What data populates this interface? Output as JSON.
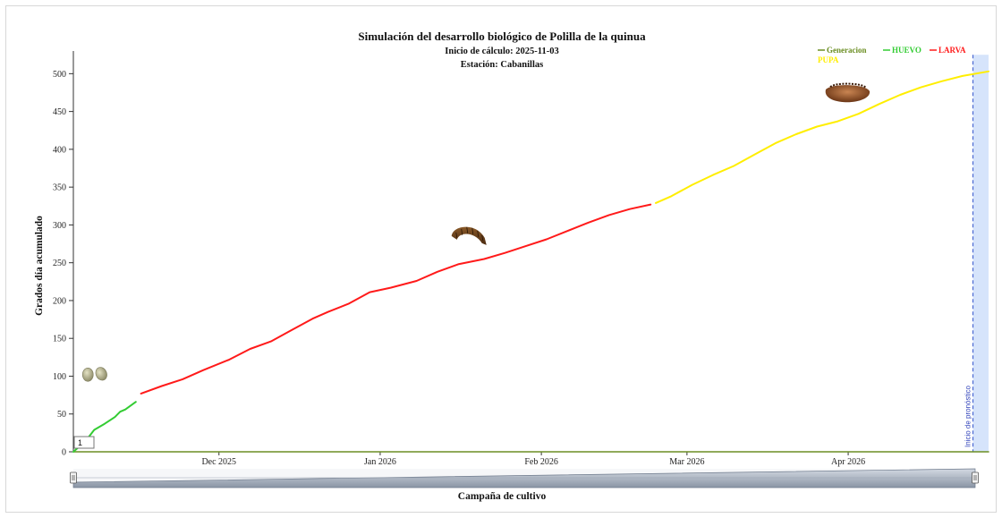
{
  "chart_data": {
    "type": "line",
    "title": "Simulación del desarrollo biológico de Polilla de la quinua",
    "subtitle_start": "Inicio de cálculo: 2025-11-03",
    "subtitle_station": "Estación: Cabanillas",
    "ylabel": "Grados día acumulado",
    "xlabel": "Campaña de cultivo",
    "ylim": [
      0,
      530
    ],
    "yticks": [
      0,
      50,
      100,
      150,
      200,
      250,
      300,
      350,
      400,
      450,
      500
    ],
    "xlim": [
      "2025-11-03",
      "2026-04-28"
    ],
    "xticks": [
      {
        "date": "2025-12-01",
        "label": "Dec 2025"
      },
      {
        "date": "2026-01-01",
        "label": "Jan 2026"
      },
      {
        "date": "2026-02-01",
        "label": "Feb 2026"
      },
      {
        "date": "2026-03-01",
        "label": "Mar 2026"
      },
      {
        "date": "2026-04-01",
        "label": "Apr 2026"
      }
    ],
    "legend": [
      {
        "name": "Generacion",
        "color": "#6b8e23"
      },
      {
        "name": "HUEVO",
        "color": "#33cc33"
      },
      {
        "name": "LARVA",
        "color": "#ff1a1a"
      },
      {
        "name": "PUPA",
        "color": "#ffee00"
      }
    ],
    "legend_position": "top-right",
    "series": [
      {
        "name": "Generacion",
        "color": "#6b8e23",
        "points": [
          [
            "2025-11-03",
            0
          ],
          [
            "2026-04-28",
            0
          ]
        ]
      },
      {
        "name": "HUEVO",
        "color": "#33cc33",
        "points": [
          [
            "2025-11-03",
            0
          ],
          [
            "2025-11-05",
            12
          ],
          [
            "2025-11-06",
            20
          ],
          [
            "2025-11-07",
            29
          ],
          [
            "2025-11-09",
            37
          ],
          [
            "2025-11-11",
            46
          ],
          [
            "2025-11-12",
            53
          ],
          [
            "2025-11-13",
            56
          ],
          [
            "2025-11-15",
            66
          ]
        ]
      },
      {
        "name": "LARVA",
        "color": "#ff1a1a",
        "points": [
          [
            "2025-11-16",
            77
          ],
          [
            "2025-11-20",
            87
          ],
          [
            "2025-11-24",
            96
          ],
          [
            "2025-11-28",
            108
          ],
          [
            "2025-12-03",
            122
          ],
          [
            "2025-12-07",
            136
          ],
          [
            "2025-12-11",
            146
          ],
          [
            "2025-12-15",
            161
          ],
          [
            "2025-12-19",
            176
          ],
          [
            "2025-12-22",
            185
          ],
          [
            "2025-12-26",
            196
          ],
          [
            "2025-12-30",
            211
          ],
          [
            "2026-01-03",
            217
          ],
          [
            "2026-01-08",
            226
          ],
          [
            "2026-01-12",
            238
          ],
          [
            "2026-01-16",
            248
          ],
          [
            "2026-01-21",
            255
          ],
          [
            "2026-01-25",
            263
          ],
          [
            "2026-01-29",
            272
          ],
          [
            "2026-02-02",
            281
          ],
          [
            "2026-02-06",
            292
          ],
          [
            "2026-02-10",
            303
          ],
          [
            "2026-02-14",
            313
          ],
          [
            "2026-02-18",
            321
          ],
          [
            "2026-02-22",
            327
          ]
        ]
      },
      {
        "name": "PUPA",
        "color": "#ffee00",
        "points": [
          [
            "2026-02-23",
            329
          ],
          [
            "2026-02-26",
            338
          ],
          [
            "2026-03-02",
            353
          ],
          [
            "2026-03-06",
            366
          ],
          [
            "2026-03-10",
            378
          ],
          [
            "2026-03-14",
            393
          ],
          [
            "2026-03-18",
            408
          ],
          [
            "2026-03-22",
            420
          ],
          [
            "2026-03-26",
            430
          ],
          [
            "2026-03-30",
            437
          ],
          [
            "2026-04-03",
            447
          ],
          [
            "2026-04-07",
            460
          ],
          [
            "2026-04-11",
            472
          ],
          [
            "2026-04-15",
            482
          ],
          [
            "2026-04-19",
            490
          ],
          [
            "2026-04-23",
            497
          ],
          [
            "2026-04-28",
            503
          ]
        ]
      }
    ],
    "forecast_label": "Inicio de pronóstico",
    "forecast_start": "2026-04-25",
    "generation_label": "1",
    "stage_icons": [
      {
        "name": "egg-icon",
        "date": "2025-11-07",
        "value": 102
      },
      {
        "name": "larva-icon",
        "date": "2026-01-18",
        "value": 290
      },
      {
        "name": "pupa-icon",
        "date": "2026-04-01",
        "value": 473
      }
    ],
    "grid": false
  }
}
